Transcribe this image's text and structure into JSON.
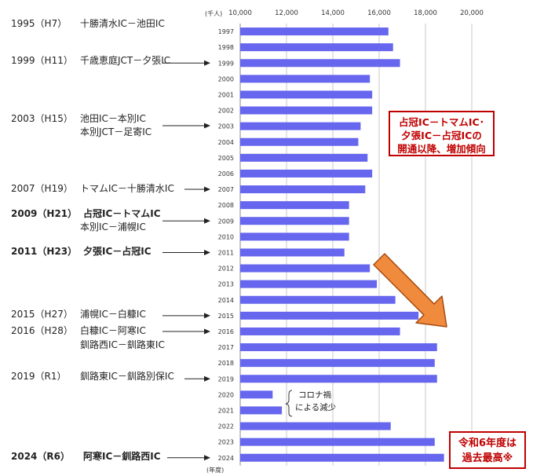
{
  "chart_data": {
    "type": "bar",
    "orientation": "horizontal",
    "unit_label": "(千人)",
    "axis_label": "(年度)",
    "xlim": [
      10000,
      20000
    ],
    "xticks": [
      "10,000",
      "12,000",
      "14,000",
      "16,000",
      "18,000",
      "20,000"
    ],
    "xtick_values": [
      10000,
      12000,
      14000,
      16000,
      18000,
      20000
    ],
    "grid": true,
    "bar_color": "#6666ee",
    "categories": [
      "1997",
      "1998",
      "1999",
      "2000",
      "2001",
      "2002",
      "2003",
      "2004",
      "2005",
      "2006",
      "2007",
      "2008",
      "2009",
      "2010",
      "2011",
      "2012",
      "2013",
      "2014",
      "2015",
      "2016",
      "2017",
      "2018",
      "2019",
      "2020",
      "2021",
      "2022",
      "2023",
      "2024"
    ],
    "values": [
      16400,
      16600,
      16900,
      15600,
      15700,
      15700,
      15200,
      15100,
      15500,
      15700,
      15400,
      14700,
      14700,
      14700,
      14500,
      15600,
      15900,
      16700,
      17700,
      16900,
      18500,
      18400,
      18500,
      11400,
      11800,
      16500,
      18400,
      18800
    ]
  },
  "annotations": [
    {
      "label": "1995（H7）",
      "text": "十勝清水IC－池田IC",
      "bold": false,
      "arrow": false
    },
    {
      "label": "1999（H11）",
      "text": "千歳恵庭JCT－夕張IC",
      "bold": false,
      "arrow": true,
      "year": "1999"
    },
    {
      "label": "2003（H15）",
      "text": "池田IC－本別IC",
      "text2": "本別JCT－足寄IC",
      "bold": false,
      "arrow": true,
      "year": "2003"
    },
    {
      "label": "2007（H19）",
      "text": "トマムIC－十勝清水IC",
      "bold": false,
      "arrow": true,
      "year": "2007"
    },
    {
      "label": "2009（H21）",
      "text": "占冠IC－トマムIC",
      "text2": "本別IC－浦幌IC",
      "bold": true,
      "arrow": true,
      "year": "2009"
    },
    {
      "label": "2011（H23）",
      "text": "夕張IC－占冠IC",
      "bold": true,
      "arrow": true,
      "year": "2011"
    },
    {
      "label": "2015（H27）",
      "text": "浦幌IC－白糠IC",
      "bold": false,
      "arrow": true,
      "year": "2015"
    },
    {
      "label": "2016（H28）",
      "text": "白糠IC－阿寒IC",
      "text2": "釧路西IC－釧路東IC",
      "bold": false,
      "arrow": true,
      "year": "2016"
    },
    {
      "label": "2019（R1）",
      "text": "釧路東IC－釧路別保IC",
      "bold": false,
      "arrow": true,
      "year": "2019"
    },
    {
      "label": "2024（R6）",
      "text": "阿寒IC－釧路西IC",
      "bold": true,
      "arrow": true,
      "year": "2024"
    }
  ],
  "covid_note": [
    "コロナ禍",
    "による減少"
  ],
  "callout_trend": [
    "占冠IC－トマムIC･",
    "夕張IC－占冠ICの",
    "開通以降、増加傾向"
  ],
  "callout_record": [
    "令和6年度は",
    "過去最高※"
  ],
  "colors": {
    "accent": "#c00000",
    "trend_arrow": "#f08a3c"
  }
}
